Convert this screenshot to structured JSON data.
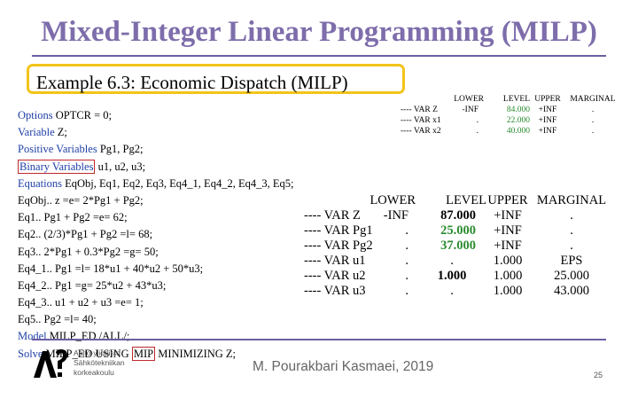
{
  "slide": {
    "title": "Mixed-Integer Linear Programming (MILP)",
    "example_title": "Example 6.3: Economic Dispatch (MILP)",
    "author": "M. Pourakbari Kasmaei, 2019",
    "page_number": "25",
    "logo_lines": [
      "Aalto-yliopisto",
      "Sähkötekniikan",
      "korkeakoulu"
    ],
    "colors": {
      "title": "#7e6dab",
      "keyword": "#1f3fa8",
      "highlight_box": "#c0282d",
      "example_border": "#f2c41a",
      "green_value": "#2a8b2f"
    }
  },
  "code": {
    "l1_kw": "Options",
    "l1_rest": " OPTCR = 0;",
    "l2_kw": "Variable",
    "l2_rest": "   Z;",
    "l3_kw": "Positive Variables",
    "l3_rest": " Pg1, Pg2;",
    "l4_kw": "Binary Variables",
    "l4_rest": " u1, u2, u3;",
    "l5_kw": "Equations",
    "l5_rest": "   EqObj, Eq1, Eq2, Eq3, Eq4_1, Eq4_2, Eq4_3, Eq5;",
    "l6": "EqObj.. z =e= 2*Pg1 + Pg2;",
    "l7": "Eq1.. Pg1 + Pg2 =e= 62;",
    "l8": "Eq2.. (2/3)*Pg1 + Pg2 =l= 68;",
    "l9": "Eq3.. 2*Pg1 + 0.3*Pg2 =g= 50;",
    "l10": "Eq4_1.. Pg1 =l= 18*u1 + 40*u2 + 50*u3;",
    "l11": "Eq4_2.. Pg1 =g= 25*u2 + 43*u3;",
    "l12": "Eq4_3.. u1 + u2 + u3 =e= 1;",
    "l13": "Eq5.. Pg2 =l= 40;",
    "l14_kw": "Model",
    "l14_rest": " MILP_ED /ALL/;",
    "l15_kw": "Solve",
    "l15_a": " MILP_ED USING ",
    "l15_mip": "MIP",
    "l15_b": " MINIMIZING Z;"
  },
  "small_table": {
    "headers": [
      "LOWER",
      "LEVEL",
      "UPPER",
      "MARGINAL"
    ],
    "rows": [
      [
        "---- VAR Z",
        "-INF",
        "84.000",
        "+INF",
        "."
      ],
      [
        "---- VAR x1",
        ".",
        "22.000",
        "+INF",
        "."
      ],
      [
        "---- VAR x2",
        ".",
        "40.000",
        "+INF",
        "."
      ]
    ]
  },
  "big_table": {
    "headers": [
      "LOWER",
      "LEVEL",
      "UPPER",
      "MARGINAL"
    ],
    "rows": [
      [
        "---- VAR Z",
        "-INF",
        "87.000",
        "+INF",
        "."
      ],
      [
        "---- VAR Pg1",
        ".",
        "25.000",
        "+INF",
        "."
      ],
      [
        "---- VAR Pg2",
        ".",
        "37.000",
        "+INF",
        "."
      ],
      [
        "---- VAR u1",
        ".",
        ".",
        "1.000",
        "EPS"
      ],
      [
        "---- VAR u2",
        ".",
        "1.000",
        "1.000",
        "25.000"
      ],
      [
        "---- VAR u3",
        ".",
        ".",
        "1.000",
        "43.000"
      ]
    ]
  }
}
